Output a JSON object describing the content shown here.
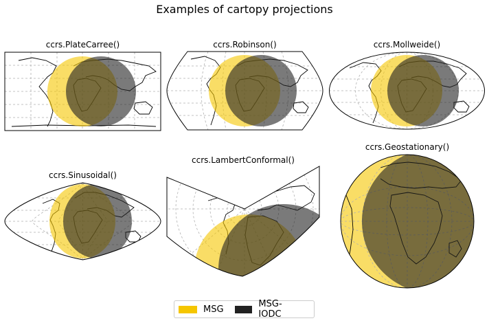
{
  "figure": {
    "title": "Examples of cartopy projections"
  },
  "colors": {
    "msg": "#f5c600",
    "iodc": "#222222",
    "graticule": "#b0b0b0",
    "outline": "#000000"
  },
  "legend": {
    "items": [
      {
        "label": "MSG",
        "color": "#f5c600"
      },
      {
        "label": "MSG-IODC",
        "color": "#222222"
      }
    ]
  },
  "panels": [
    {
      "title": "ccrs.PlateCarree()",
      "projection": "platecarree"
    },
    {
      "title": "ccrs.Robinson()",
      "projection": "robinson"
    },
    {
      "title": "ccrs.Mollweide()",
      "projection": "mollweide"
    },
    {
      "title": "ccrs.Sinusoidal()",
      "projection": "sinusoidal"
    },
    {
      "title": "ccrs.LambertConformal()",
      "projection": "lambertconformal"
    },
    {
      "title": "ccrs.Geostationary()",
      "projection": "geostationary"
    }
  ]
}
